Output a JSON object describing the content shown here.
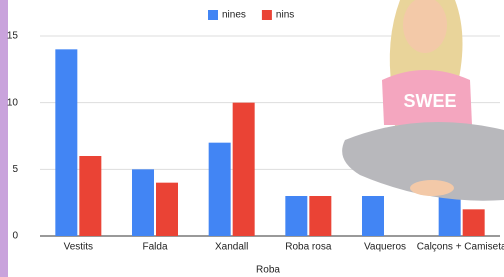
{
  "chart_data": {
    "type": "bar",
    "x_label": "Roba",
    "categories": [
      "Vestits",
      "Falda",
      "Xandall",
      "Roba rosa",
      "Vaqueros",
      "Calçons + Camiseta"
    ],
    "series": [
      {
        "name": "nines",
        "color": "#4285f4",
        "values": [
          14,
          5,
          7,
          3,
          3,
          3
        ]
      },
      {
        "name": "nins",
        "color": "#ea4335",
        "values": [
          6,
          4,
          10,
          3,
          0,
          2
        ]
      }
    ],
    "ylim": [
      0,
      16.5
    ],
    "yticks": [
      0,
      5,
      10,
      15
    ],
    "grid": true,
    "legend": "top"
  }
}
